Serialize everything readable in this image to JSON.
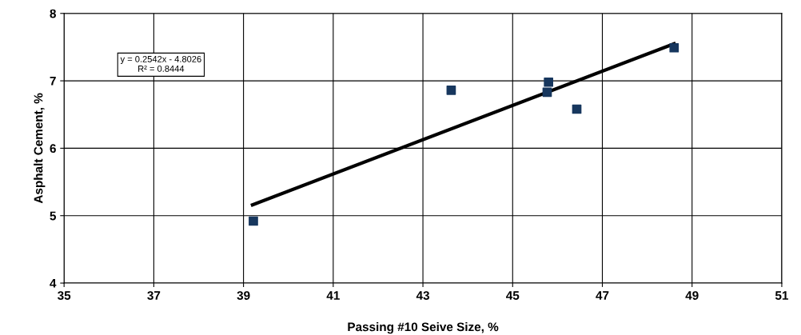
{
  "chart_data": {
    "type": "scatter",
    "xlabel": "Passing #10 Seive Size, %",
    "ylabel": "Asphalt Cement, %",
    "xlim": [
      35,
      51
    ],
    "xticks": [
      35,
      37,
      39,
      41,
      43,
      45,
      47,
      49,
      51
    ],
    "ylim": [
      4,
      8
    ],
    "yticks": [
      4,
      5,
      6,
      7,
      8
    ],
    "grid": true,
    "series": [
      {
        "color": "#17375e",
        "marker": "square",
        "x": [
          39.22,
          43.63,
          45.8,
          45.77,
          46.43,
          48.6
        ],
        "values": [
          4.92,
          6.86,
          6.98,
          6.83,
          6.58,
          7.49
        ]
      },
      {
        "type": "line",
        "color": "#000000",
        "x": [
          39.2,
          48.6
        ],
        "values": [
          5.16,
          7.55
        ]
      }
    ],
    "annotations": [
      "y = 0.2542x - 4.8026\nR² = 0.8444"
    ]
  }
}
